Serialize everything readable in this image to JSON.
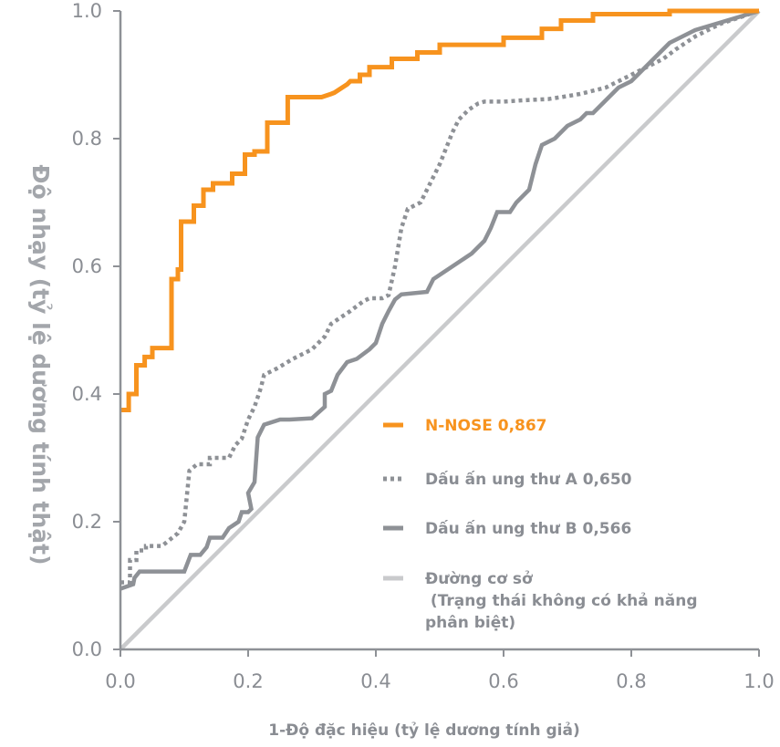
{
  "chart_data": {
    "type": "line",
    "xlabel": "1-Độ đặc hiệu (tỷ lệ dương tính giả)",
    "ylabel": "Độ nhạy (tỷ lệ dương tính thật)",
    "xlim": [
      0,
      1
    ],
    "ylim": [
      0,
      1
    ],
    "x_ticks": [
      "0.0",
      "0.2",
      "0.4",
      "0.6",
      "0.8",
      "1.0"
    ],
    "y_ticks": [
      "0.0",
      "0.2",
      "0.4",
      "0.6",
      "0.8",
      "1.0"
    ],
    "grid": false,
    "legend_position": "center-right",
    "series": [
      {
        "name": "N-NOSE 0,867",
        "color": "#f7931e",
        "style": "solid",
        "points": [
          [
            0.0,
            0.375
          ],
          [
            0.013,
            0.375
          ],
          [
            0.013,
            0.4
          ],
          [
            0.025,
            0.4
          ],
          [
            0.025,
            0.445
          ],
          [
            0.038,
            0.445
          ],
          [
            0.038,
            0.458
          ],
          [
            0.05,
            0.458
          ],
          [
            0.05,
            0.472
          ],
          [
            0.063,
            0.472
          ],
          [
            0.063,
            0.472
          ],
          [
            0.08,
            0.472
          ],
          [
            0.08,
            0.58
          ],
          [
            0.09,
            0.58
          ],
          [
            0.09,
            0.595
          ],
          [
            0.095,
            0.595
          ],
          [
            0.095,
            0.67
          ],
          [
            0.115,
            0.67
          ],
          [
            0.115,
            0.695
          ],
          [
            0.13,
            0.695
          ],
          [
            0.13,
            0.72
          ],
          [
            0.145,
            0.72
          ],
          [
            0.145,
            0.73
          ],
          [
            0.175,
            0.73
          ],
          [
            0.175,
            0.745
          ],
          [
            0.195,
            0.745
          ],
          [
            0.195,
            0.775
          ],
          [
            0.21,
            0.775
          ],
          [
            0.21,
            0.78
          ],
          [
            0.23,
            0.78
          ],
          [
            0.23,
            0.825
          ],
          [
            0.262,
            0.825
          ],
          [
            0.262,
            0.865
          ],
          [
            0.315,
            0.865
          ],
          [
            0.33,
            0.87
          ],
          [
            0.335,
            0.872
          ],
          [
            0.355,
            0.885
          ],
          [
            0.36,
            0.89
          ],
          [
            0.375,
            0.89
          ],
          [
            0.375,
            0.9
          ],
          [
            0.39,
            0.9
          ],
          [
            0.39,
            0.912
          ],
          [
            0.425,
            0.912
          ],
          [
            0.425,
            0.925
          ],
          [
            0.465,
            0.925
          ],
          [
            0.465,
            0.935
          ],
          [
            0.5,
            0.935
          ],
          [
            0.5,
            0.947
          ],
          [
            0.6,
            0.947
          ],
          [
            0.6,
            0.958
          ],
          [
            0.66,
            0.958
          ],
          [
            0.66,
            0.972
          ],
          [
            0.69,
            0.972
          ],
          [
            0.69,
            0.985
          ],
          [
            0.74,
            0.985
          ],
          [
            0.74,
            0.995
          ],
          [
            0.86,
            0.995
          ],
          [
            0.86,
            1.0
          ],
          [
            1.0,
            1.0
          ]
        ]
      },
      {
        "name": "Dấu ấn ung thư A 0,650",
        "color": "#8e9196",
        "style": "dotted",
        "points": [
          [
            0.0,
            0.105
          ],
          [
            0.015,
            0.105
          ],
          [
            0.015,
            0.14
          ],
          [
            0.025,
            0.14
          ],
          [
            0.025,
            0.155
          ],
          [
            0.04,
            0.155
          ],
          [
            0.04,
            0.162
          ],
          [
            0.065,
            0.162
          ],
          [
            0.075,
            0.17
          ],
          [
            0.09,
            0.182
          ],
          [
            0.1,
            0.2
          ],
          [
            0.108,
            0.28
          ],
          [
            0.12,
            0.29
          ],
          [
            0.14,
            0.29
          ],
          [
            0.14,
            0.3
          ],
          [
            0.17,
            0.3
          ],
          [
            0.18,
            0.32
          ],
          [
            0.19,
            0.33
          ],
          [
            0.2,
            0.36
          ],
          [
            0.21,
            0.38
          ],
          [
            0.22,
            0.41
          ],
          [
            0.225,
            0.43
          ],
          [
            0.245,
            0.44
          ],
          [
            0.27,
            0.455
          ],
          [
            0.3,
            0.47
          ],
          [
            0.31,
            0.48
          ],
          [
            0.32,
            0.49
          ],
          [
            0.33,
            0.51
          ],
          [
            0.36,
            0.53
          ],
          [
            0.38,
            0.545
          ],
          [
            0.39,
            0.55
          ],
          [
            0.41,
            0.55
          ],
          [
            0.42,
            0.555
          ],
          [
            0.43,
            0.6
          ],
          [
            0.44,
            0.66
          ],
          [
            0.45,
            0.69
          ],
          [
            0.47,
            0.7
          ],
          [
            0.48,
            0.72
          ],
          [
            0.5,
            0.76
          ],
          [
            0.51,
            0.785
          ],
          [
            0.52,
            0.81
          ],
          [
            0.53,
            0.83
          ],
          [
            0.545,
            0.845
          ],
          [
            0.56,
            0.855
          ],
          [
            0.57,
            0.858
          ],
          [
            0.6,
            0.858
          ],
          [
            0.63,
            0.86
          ],
          [
            0.67,
            0.862
          ],
          [
            0.69,
            0.865
          ],
          [
            0.72,
            0.87
          ],
          [
            0.76,
            0.88
          ],
          [
            0.8,
            0.9
          ],
          [
            0.83,
            0.915
          ],
          [
            0.85,
            0.925
          ],
          [
            0.87,
            0.94
          ],
          [
            0.9,
            0.96
          ],
          [
            0.94,
            0.98
          ],
          [
            1.0,
            1.0
          ]
        ]
      },
      {
        "name": "Dấu ấn ung thư B 0,566",
        "color": "#8e9196",
        "style": "solid",
        "points": [
          [
            0.0,
            0.095
          ],
          [
            0.02,
            0.102
          ],
          [
            0.022,
            0.112
          ],
          [
            0.03,
            0.122
          ],
          [
            0.1,
            0.122
          ],
          [
            0.11,
            0.148
          ],
          [
            0.125,
            0.148
          ],
          [
            0.135,
            0.16
          ],
          [
            0.14,
            0.175
          ],
          [
            0.16,
            0.175
          ],
          [
            0.17,
            0.19
          ],
          [
            0.185,
            0.2
          ],
          [
            0.19,
            0.215
          ],
          [
            0.2,
            0.215
          ],
          [
            0.205,
            0.22
          ],
          [
            0.2,
            0.245
          ],
          [
            0.21,
            0.262
          ],
          [
            0.215,
            0.332
          ],
          [
            0.225,
            0.352
          ],
          [
            0.25,
            0.36
          ],
          [
            0.265,
            0.36
          ],
          [
            0.3,
            0.362
          ],
          [
            0.32,
            0.38
          ],
          [
            0.32,
            0.4
          ],
          [
            0.33,
            0.405
          ],
          [
            0.34,
            0.43
          ],
          [
            0.355,
            0.45
          ],
          [
            0.37,
            0.455
          ],
          [
            0.39,
            0.47
          ],
          [
            0.395,
            0.475
          ],
          [
            0.4,
            0.48
          ],
          [
            0.41,
            0.51
          ],
          [
            0.42,
            0.53
          ],
          [
            0.43,
            0.548
          ],
          [
            0.44,
            0.556
          ],
          [
            0.48,
            0.56
          ],
          [
            0.49,
            0.58
          ],
          [
            0.52,
            0.6
          ],
          [
            0.55,
            0.62
          ],
          [
            0.57,
            0.64
          ],
          [
            0.58,
            0.66
          ],
          [
            0.59,
            0.685
          ],
          [
            0.61,
            0.685
          ],
          [
            0.62,
            0.7
          ],
          [
            0.64,
            0.72
          ],
          [
            0.65,
            0.76
          ],
          [
            0.66,
            0.79
          ],
          [
            0.68,
            0.8
          ],
          [
            0.69,
            0.81
          ],
          [
            0.7,
            0.82
          ],
          [
            0.72,
            0.83
          ],
          [
            0.73,
            0.84
          ],
          [
            0.74,
            0.84
          ],
          [
            0.76,
            0.86
          ],
          [
            0.78,
            0.88
          ],
          [
            0.8,
            0.89
          ],
          [
            0.82,
            0.91
          ],
          [
            0.84,
            0.93
          ],
          [
            0.86,
            0.95
          ],
          [
            0.88,
            0.96
          ],
          [
            0.9,
            0.97
          ],
          [
            1.0,
            1.0
          ]
        ]
      },
      {
        "name": "Đường cơ sở",
        "note": "(Trạng thái không có khả năng phân biệt)",
        "color": "#c9cacc",
        "style": "solid",
        "points": [
          [
            0.0,
            0.0
          ],
          [
            1.0,
            1.0
          ]
        ]
      }
    ]
  },
  "legend": [
    {
      "lines": [
        "N-NOSE 0,867"
      ],
      "color": "#f7931e",
      "text_color": "#f7931e",
      "style": "solid"
    },
    {
      "lines": [
        "Dấu ấn ung thư A 0,650"
      ],
      "color": "#8e9196",
      "text_color": "#8a8d93",
      "style": "dotted"
    },
    {
      "lines": [
        "Dấu ấn ung thư B 0,566"
      ],
      "color": "#8e9196",
      "text_color": "#8a8d93",
      "style": "solid"
    },
    {
      "lines": [
        "Đường cơ sở",
        " (Trạng thái không có khả năng",
        "phân biệt)"
      ],
      "color": "#c9cacc",
      "text_color": "#8a8d93",
      "style": "solid"
    }
  ]
}
